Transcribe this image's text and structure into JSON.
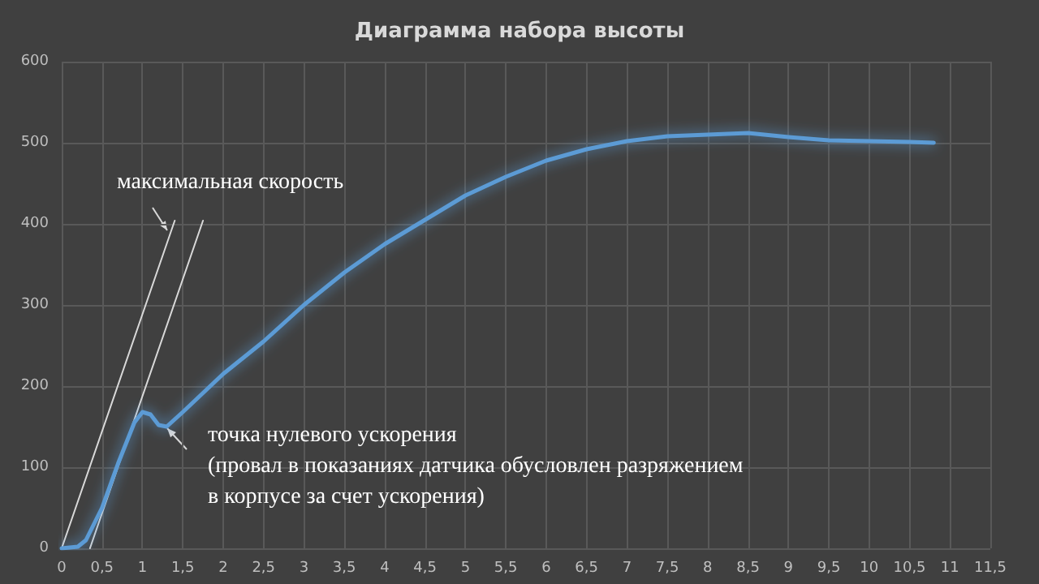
{
  "chart_data": {
    "type": "line",
    "title": "Диаграмма набора высоты",
    "series": [
      {
        "color": "#5b9bd5",
        "x": [
          0,
          0.2,
          0.3,
          0.5,
          0.7,
          0.9,
          1.0,
          1.1,
          1.2,
          1.3,
          1.5,
          2,
          2.5,
          3,
          3.5,
          4,
          4.5,
          5,
          5.5,
          6,
          6.5,
          7,
          7.5,
          8,
          8.5,
          9,
          9.5,
          10,
          10.5,
          10.8
        ],
        "values": [
          0,
          2,
          10,
          50,
          105,
          155,
          168,
          165,
          152,
          150,
          168,
          215,
          255,
          300,
          340,
          375,
          405,
          435,
          458,
          478,
          492,
          502,
          508,
          510,
          512,
          507,
          503,
          502,
          501,
          500
        ]
      },
      {
        "color": "#d9d9d9",
        "x": [
          0,
          1.4
        ],
        "values": [
          0,
          404
        ]
      },
      {
        "color": "#d9d9d9",
        "x": [
          0.35,
          1.75
        ],
        "values": [
          0,
          404
        ]
      }
    ],
    "annotations": [
      "максимальная скорость",
      "точка нулевого ускорения\n(провал в показаниях датчика обусловлен разряжением\nв корпусе за счет ускорения)"
    ],
    "xlim": [
      0,
      11.5
    ],
    "xticks": [
      0,
      {
        "value": 0.5,
        "label": "0,5"
      },
      1,
      {
        "value": 1.5,
        "label": "1,5"
      },
      2,
      {
        "value": 2.5,
        "label": "2,5"
      },
      3,
      {
        "value": 3.5,
        "label": "3,5"
      },
      4,
      {
        "value": 4.5,
        "label": "4,5"
      },
      5,
      {
        "value": 5.5,
        "label": "5,5"
      },
      6,
      {
        "value": 6.5,
        "label": "6,5"
      },
      7,
      {
        "value": 7.5,
        "label": "7,5"
      },
      8,
      {
        "value": 8.5,
        "label": "8,5"
      },
      9,
      {
        "value": 9.5,
        "label": "9,5"
      },
      10,
      {
        "value": 10.5,
        "label": "10,5"
      },
      11,
      {
        "value": 11.5,
        "label": "11,5"
      }
    ],
    "ylim": [
      0,
      600
    ],
    "yticks": [
      0,
      100,
      200,
      300,
      400,
      500,
      600
    ],
    "grid": true,
    "marker": "none",
    "line_style": "solid"
  }
}
